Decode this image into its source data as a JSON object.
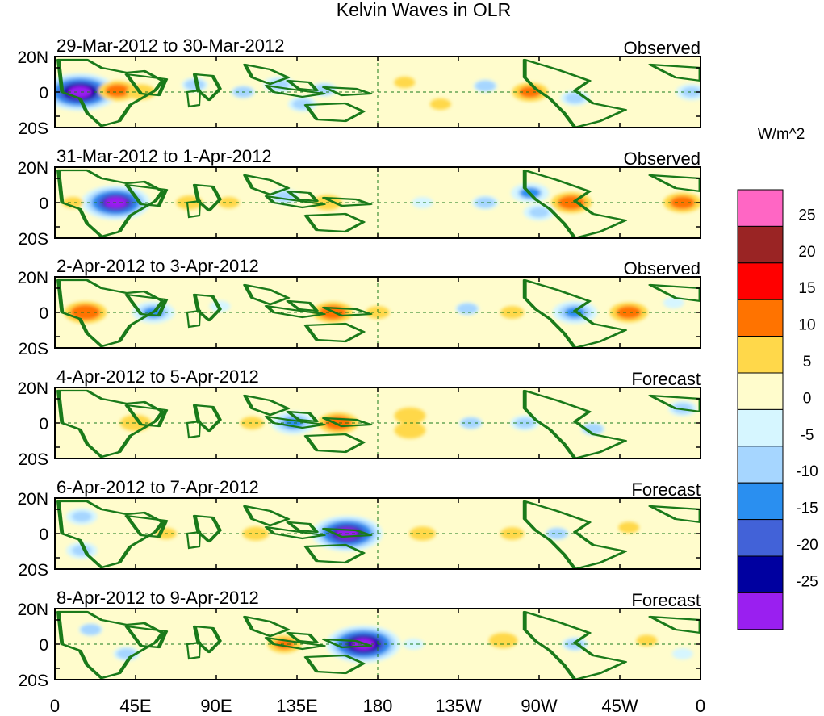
{
  "chart_data": {
    "type": "heatmap",
    "title": "Kelvin Waves in OLR",
    "units": "W/m^2",
    "x_ticks": [
      "0",
      "45E",
      "90E",
      "135E",
      "180",
      "135W",
      "90W",
      "45W",
      "0"
    ],
    "y_ticks": [
      "20N",
      "0",
      "20S"
    ],
    "xlim": [
      0,
      360
    ],
    "ylim": [
      -20,
      20
    ],
    "colorbar": {
      "labels": [
        "25",
        "20",
        "15",
        "10",
        "5",
        "0",
        "-5",
        "-10",
        "-15",
        "-20",
        "-25"
      ],
      "colors": [
        "#ff66c4",
        "#9a2424",
        "#ff0000",
        "#ff7300",
        "#ffd84a",
        "#fffccc",
        "#d6f6ff",
        "#a6d6ff",
        "#2a8ff0",
        "#4262d8",
        "#0000a0",
        "#9a1ff0"
      ]
    },
    "panels": [
      {
        "period": "29-Mar-2012 to 30-Mar-2012",
        "status": "Observed",
        "anomalies": [
          {
            "lon": 14,
            "lat": 0,
            "value": -30
          },
          {
            "lon": 35,
            "lat": 1,
            "value": 12
          },
          {
            "lon": 48,
            "lat": 0,
            "value": 8
          },
          {
            "lon": 78,
            "lat": 6,
            "value": -7
          },
          {
            "lon": 105,
            "lat": 0,
            "value": -6
          },
          {
            "lon": 125,
            "lat": 6,
            "value": -9
          },
          {
            "lon": 138,
            "lat": -10,
            "value": -8
          },
          {
            "lon": 150,
            "lat": 2,
            "value": -7
          },
          {
            "lon": 195,
            "lat": 8,
            "value": 5
          },
          {
            "lon": 215,
            "lat": -10,
            "value": 5
          },
          {
            "lon": 240,
            "lat": 5,
            "value": -6
          },
          {
            "lon": 265,
            "lat": 0,
            "value": 11
          },
          {
            "lon": 290,
            "lat": -5,
            "value": -8
          },
          {
            "lon": 320,
            "lat": 4,
            "value": 4
          },
          {
            "lon": 355,
            "lat": 0,
            "value": -9
          }
        ]
      },
      {
        "period": "31-Mar-2012 to 1-Apr-2012",
        "status": "Observed",
        "anomalies": [
          {
            "lon": 34,
            "lat": 0,
            "value": -27
          },
          {
            "lon": 10,
            "lat": 0,
            "value": 5
          },
          {
            "lon": 75,
            "lat": 0,
            "value": 7
          },
          {
            "lon": 97,
            "lat": 0,
            "value": 5
          },
          {
            "lon": 128,
            "lat": 5,
            "value": -8
          },
          {
            "lon": 152,
            "lat": 0,
            "value": 8
          },
          {
            "lon": 205,
            "lat": 0,
            "value": -5
          },
          {
            "lon": 240,
            "lat": 0,
            "value": -7
          },
          {
            "lon": 265,
            "lat": 8,
            "value": -12
          },
          {
            "lon": 288,
            "lat": 0,
            "value": 13
          },
          {
            "lon": 270,
            "lat": -8,
            "value": -9
          },
          {
            "lon": 350,
            "lat": 0,
            "value": 12
          }
        ]
      },
      {
        "period": "2-Apr-2012 to 3-Apr-2012",
        "status": "Observed",
        "anomalies": [
          {
            "lon": 17,
            "lat": 0,
            "value": 14
          },
          {
            "lon": 55,
            "lat": 0,
            "value": -14
          },
          {
            "lon": 92,
            "lat": 5,
            "value": -5
          },
          {
            "lon": 155,
            "lat": 0,
            "value": 13
          },
          {
            "lon": 180,
            "lat": 0,
            "value": 6
          },
          {
            "lon": 230,
            "lat": 3,
            "value": -6
          },
          {
            "lon": 255,
            "lat": 0,
            "value": 6
          },
          {
            "lon": 290,
            "lat": 0,
            "value": -15
          },
          {
            "lon": 320,
            "lat": 0,
            "value": 12
          },
          {
            "lon": 345,
            "lat": 8,
            "value": -5
          }
        ]
      },
      {
        "period": "4-Apr-2012 to 5-Apr-2012",
        "status": "Forecast",
        "anomalies": [
          {
            "lon": 45,
            "lat": 0,
            "value": 9
          },
          {
            "lon": 110,
            "lat": 0,
            "value": 6
          },
          {
            "lon": 133,
            "lat": 0,
            "value": -15
          },
          {
            "lon": 158,
            "lat": 0,
            "value": 13
          },
          {
            "lon": 198,
            "lat": 6,
            "value": 9
          },
          {
            "lon": 198,
            "lat": -6,
            "value": 9
          },
          {
            "lon": 232,
            "lat": 0,
            "value": -6
          },
          {
            "lon": 262,
            "lat": 0,
            "value": -8
          },
          {
            "lon": 300,
            "lat": -5,
            "value": -6
          },
          {
            "lon": 350,
            "lat": 12,
            "value": -8
          }
        ]
      },
      {
        "period": "6-Apr-2012 to 7-Apr-2012",
        "status": "Forecast",
        "anomalies": [
          {
            "lon": 15,
            "lat": 14,
            "value": -9
          },
          {
            "lon": 15,
            "lat": -14,
            "value": -9
          },
          {
            "lon": 62,
            "lat": 0,
            "value": 5
          },
          {
            "lon": 112,
            "lat": 0,
            "value": 7
          },
          {
            "lon": 163,
            "lat": 0,
            "value": -28
          },
          {
            "lon": 205,
            "lat": 0,
            "value": 7
          },
          {
            "lon": 255,
            "lat": 0,
            "value": 6
          },
          {
            "lon": 280,
            "lat": 0,
            "value": -6
          },
          {
            "lon": 320,
            "lat": 5,
            "value": 5
          }
        ]
      },
      {
        "period": "8-Apr-2012 to 9-Apr-2012",
        "status": "Forecast",
        "anomalies": [
          {
            "lon": 20,
            "lat": 12,
            "value": -6
          },
          {
            "lon": 40,
            "lat": -8,
            "value": -7
          },
          {
            "lon": 128,
            "lat": 0,
            "value": 10
          },
          {
            "lon": 172,
            "lat": 0,
            "value": -30
          },
          {
            "lon": 200,
            "lat": 0,
            "value": -5
          },
          {
            "lon": 250,
            "lat": 3,
            "value": 8
          },
          {
            "lon": 290,
            "lat": 0,
            "value": -7
          },
          {
            "lon": 330,
            "lat": 3,
            "value": 5
          },
          {
            "lon": 350,
            "lat": -8,
            "value": -5
          }
        ]
      }
    ]
  }
}
